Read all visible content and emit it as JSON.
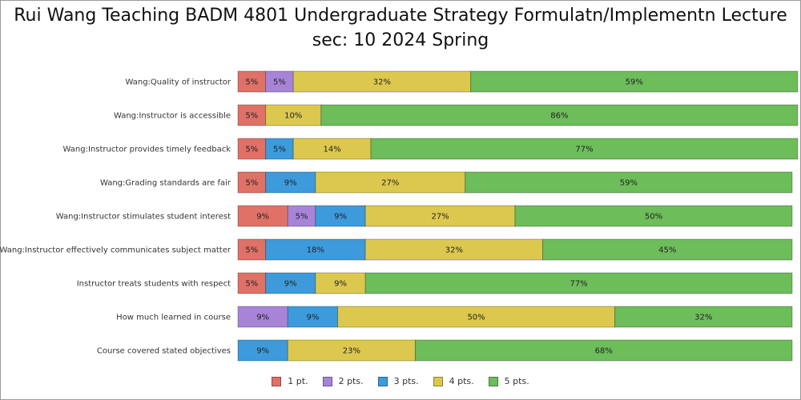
{
  "chart_data": {
    "type": "bar",
    "orientation": "horizontal",
    "stacked": true,
    "title_lines": [
      "Rui Wang Teaching BADM 4801 Undergraduate Strategy Formulatn/Implementn Lecture",
      "sec: 10 2024 Spring"
    ],
    "categories": [
      "Wang:Quality of instructor",
      "Wang:Instructor is accessible",
      "Wang:Instructor provides timely feedback",
      "Wang:Grading standards are fair",
      "Wang:Instructor stimulates student interest",
      "Wang:Instructor effectively communicates subject matter",
      "Instructor treats students with respect",
      "How much learned in course",
      "Course covered stated objectives"
    ],
    "series": [
      {
        "name": "1 pt.",
        "color": "#e07167",
        "values": [
          5,
          5,
          5,
          5,
          9,
          5,
          5,
          0,
          0
        ]
      },
      {
        "name": "2 pts.",
        "color": "#a784d8",
        "values": [
          5,
          0,
          0,
          0,
          5,
          0,
          0,
          9,
          0
        ]
      },
      {
        "name": "3 pts.",
        "color": "#3d9bdc",
        "values": [
          0,
          0,
          5,
          9,
          9,
          18,
          9,
          9,
          9
        ]
      },
      {
        "name": "4 pts.",
        "color": "#dcc84e",
        "values": [
          32,
          10,
          14,
          27,
          27,
          32,
          9,
          50,
          23
        ]
      },
      {
        "name": "5 pts.",
        "color": "#6dbd5b",
        "values": [
          59,
          86,
          77,
          59,
          50,
          45,
          77,
          32,
          68
        ]
      }
    ],
    "value_suffix": "%",
    "xlim": [
      0,
      100
    ],
    "grid": false,
    "legend_position": "bottom"
  }
}
